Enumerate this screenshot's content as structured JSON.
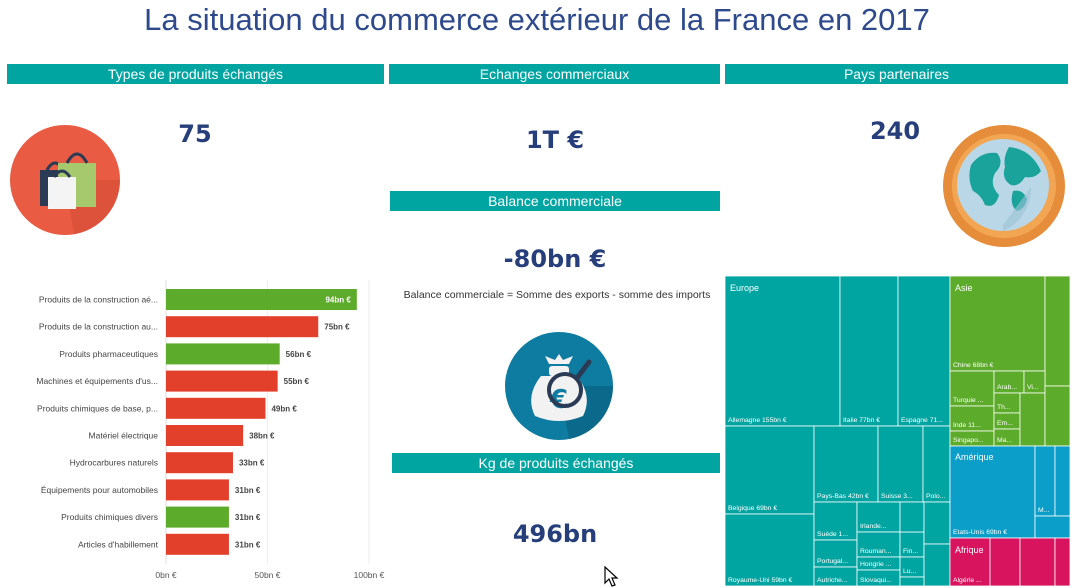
{
  "title": "La situation du commerce extérieur de la France en 2017",
  "sections": {
    "types_header": "Types de produits échangés",
    "echanges_header": "Echanges commerciaux",
    "pays_header": "Pays partenaires",
    "balance_header": "Balance commerciale",
    "kg_header": "Kg de produits échangés"
  },
  "kpis": {
    "types_count": "75",
    "echanges_value": "1T €",
    "pays_count": "240",
    "balance_value": "-80bn €",
    "kg_value": "496bn"
  },
  "balance_note": "Balance commerciale = Somme des exports - somme des imports",
  "icons": {
    "types": "shopping-bags-icon",
    "pays": "globe-icon",
    "balance": "money-bag-euro-icon"
  },
  "colors": {
    "teal": "#00a5a2",
    "green": "#5dab2a",
    "red": "#e3402c",
    "navy": "#263f7b",
    "treemap_europe": "#00a5a2",
    "treemap_asie": "#5dab2a",
    "treemap_amerique": "#0a9ec9",
    "treemap_afrique": "#d9145f"
  },
  "chart_data": [
    {
      "type": "bar",
      "orientation": "horizontal",
      "categories": [
        "Produits de la construction aé...",
        "Produits de la construction au...",
        "Produits pharmaceutiques",
        "Machines et équipements d'us...",
        "Produits chimiques de base, p...",
        "Matériel électrique",
        "Hydrocarbures naturels",
        "Équipements pour automobiles",
        "Produits chimiques divers",
        "Articles d'habillement"
      ],
      "values": [
        94,
        75,
        56,
        55,
        49,
        38,
        33,
        31,
        31,
        31
      ],
      "value_labels": [
        "94bn €",
        "75bn €",
        "56bn €",
        "55bn €",
        "49bn €",
        "38bn €",
        "33bn €",
        "31bn €",
        "31bn €",
        "31bn €"
      ],
      "bar_colors": [
        "#5dab2a",
        "#e3402c",
        "#5dab2a",
        "#e3402c",
        "#e3402c",
        "#e3402c",
        "#e3402c",
        "#e3402c",
        "#5dab2a",
        "#e3402c"
      ],
      "x_ticks": [
        "0bn €",
        "50bn €",
        "100bn €"
      ],
      "xlim": [
        0,
        100
      ]
    },
    {
      "type": "treemap",
      "groups": [
        {
          "name": "Europe",
          "color": "#00a5a2",
          "items": [
            {
              "label": "Allemagne 155bn €",
              "value": 155
            },
            {
              "label": "Italie 77bn €",
              "value": 77
            },
            {
              "label": "Espagne 71...",
              "value": 71
            },
            {
              "label": "Belgique 69bn €",
              "value": 69
            },
            {
              "label": "Royaume-Uni 59bn €",
              "value": 59
            },
            {
              "label": "Pays-Bas 42bn €",
              "value": 42
            },
            {
              "label": "Suisse 3...",
              "value": 30
            },
            {
              "label": "Polo...",
              "value": 20
            },
            {
              "label": "Suède 1...",
              "value": 15
            },
            {
              "label": "Irlande...",
              "value": 13
            },
            {
              "label": "Portugal...",
              "value": 13
            },
            {
              "label": "Rouman...",
              "value": 11
            },
            {
              "label": "Hongrie ...",
              "value": 10
            },
            {
              "label": "Autriche...",
              "value": 11
            },
            {
              "label": "Slovaqui...",
              "value": 10
            },
            {
              "label": "Fin...",
              "value": 7
            },
            {
              "label": "Lu...",
              "value": 6
            }
          ]
        },
        {
          "name": "Asie",
          "color": "#5dab2a",
          "items": [
            {
              "label": "Chine 68bn €",
              "value": 68
            },
            {
              "label": "Turquie ...",
              "value": 13
            },
            {
              "label": "Arab...",
              "value": 10
            },
            {
              "label": "Vi...",
              "value": 9
            },
            {
              "label": "Inde 11...",
              "value": 11
            },
            {
              "label": "Th...",
              "value": 8
            },
            {
              "label": "Em...",
              "value": 8
            },
            {
              "label": "Singapo...",
              "value": 9
            },
            {
              "label": "Ma...",
              "value": 7
            }
          ]
        },
        {
          "name": "Amérique",
          "color": "#0a9ec9",
          "items": [
            {
              "label": "Etats-Unis 69bn €",
              "value": 69
            },
            {
              "label": "M...",
              "value": 8
            }
          ]
        },
        {
          "name": "Afrique",
          "color": "#d9145f",
          "items": [
            {
              "label": "Algérie ...",
              "value": 10
            }
          ]
        }
      ]
    }
  ]
}
